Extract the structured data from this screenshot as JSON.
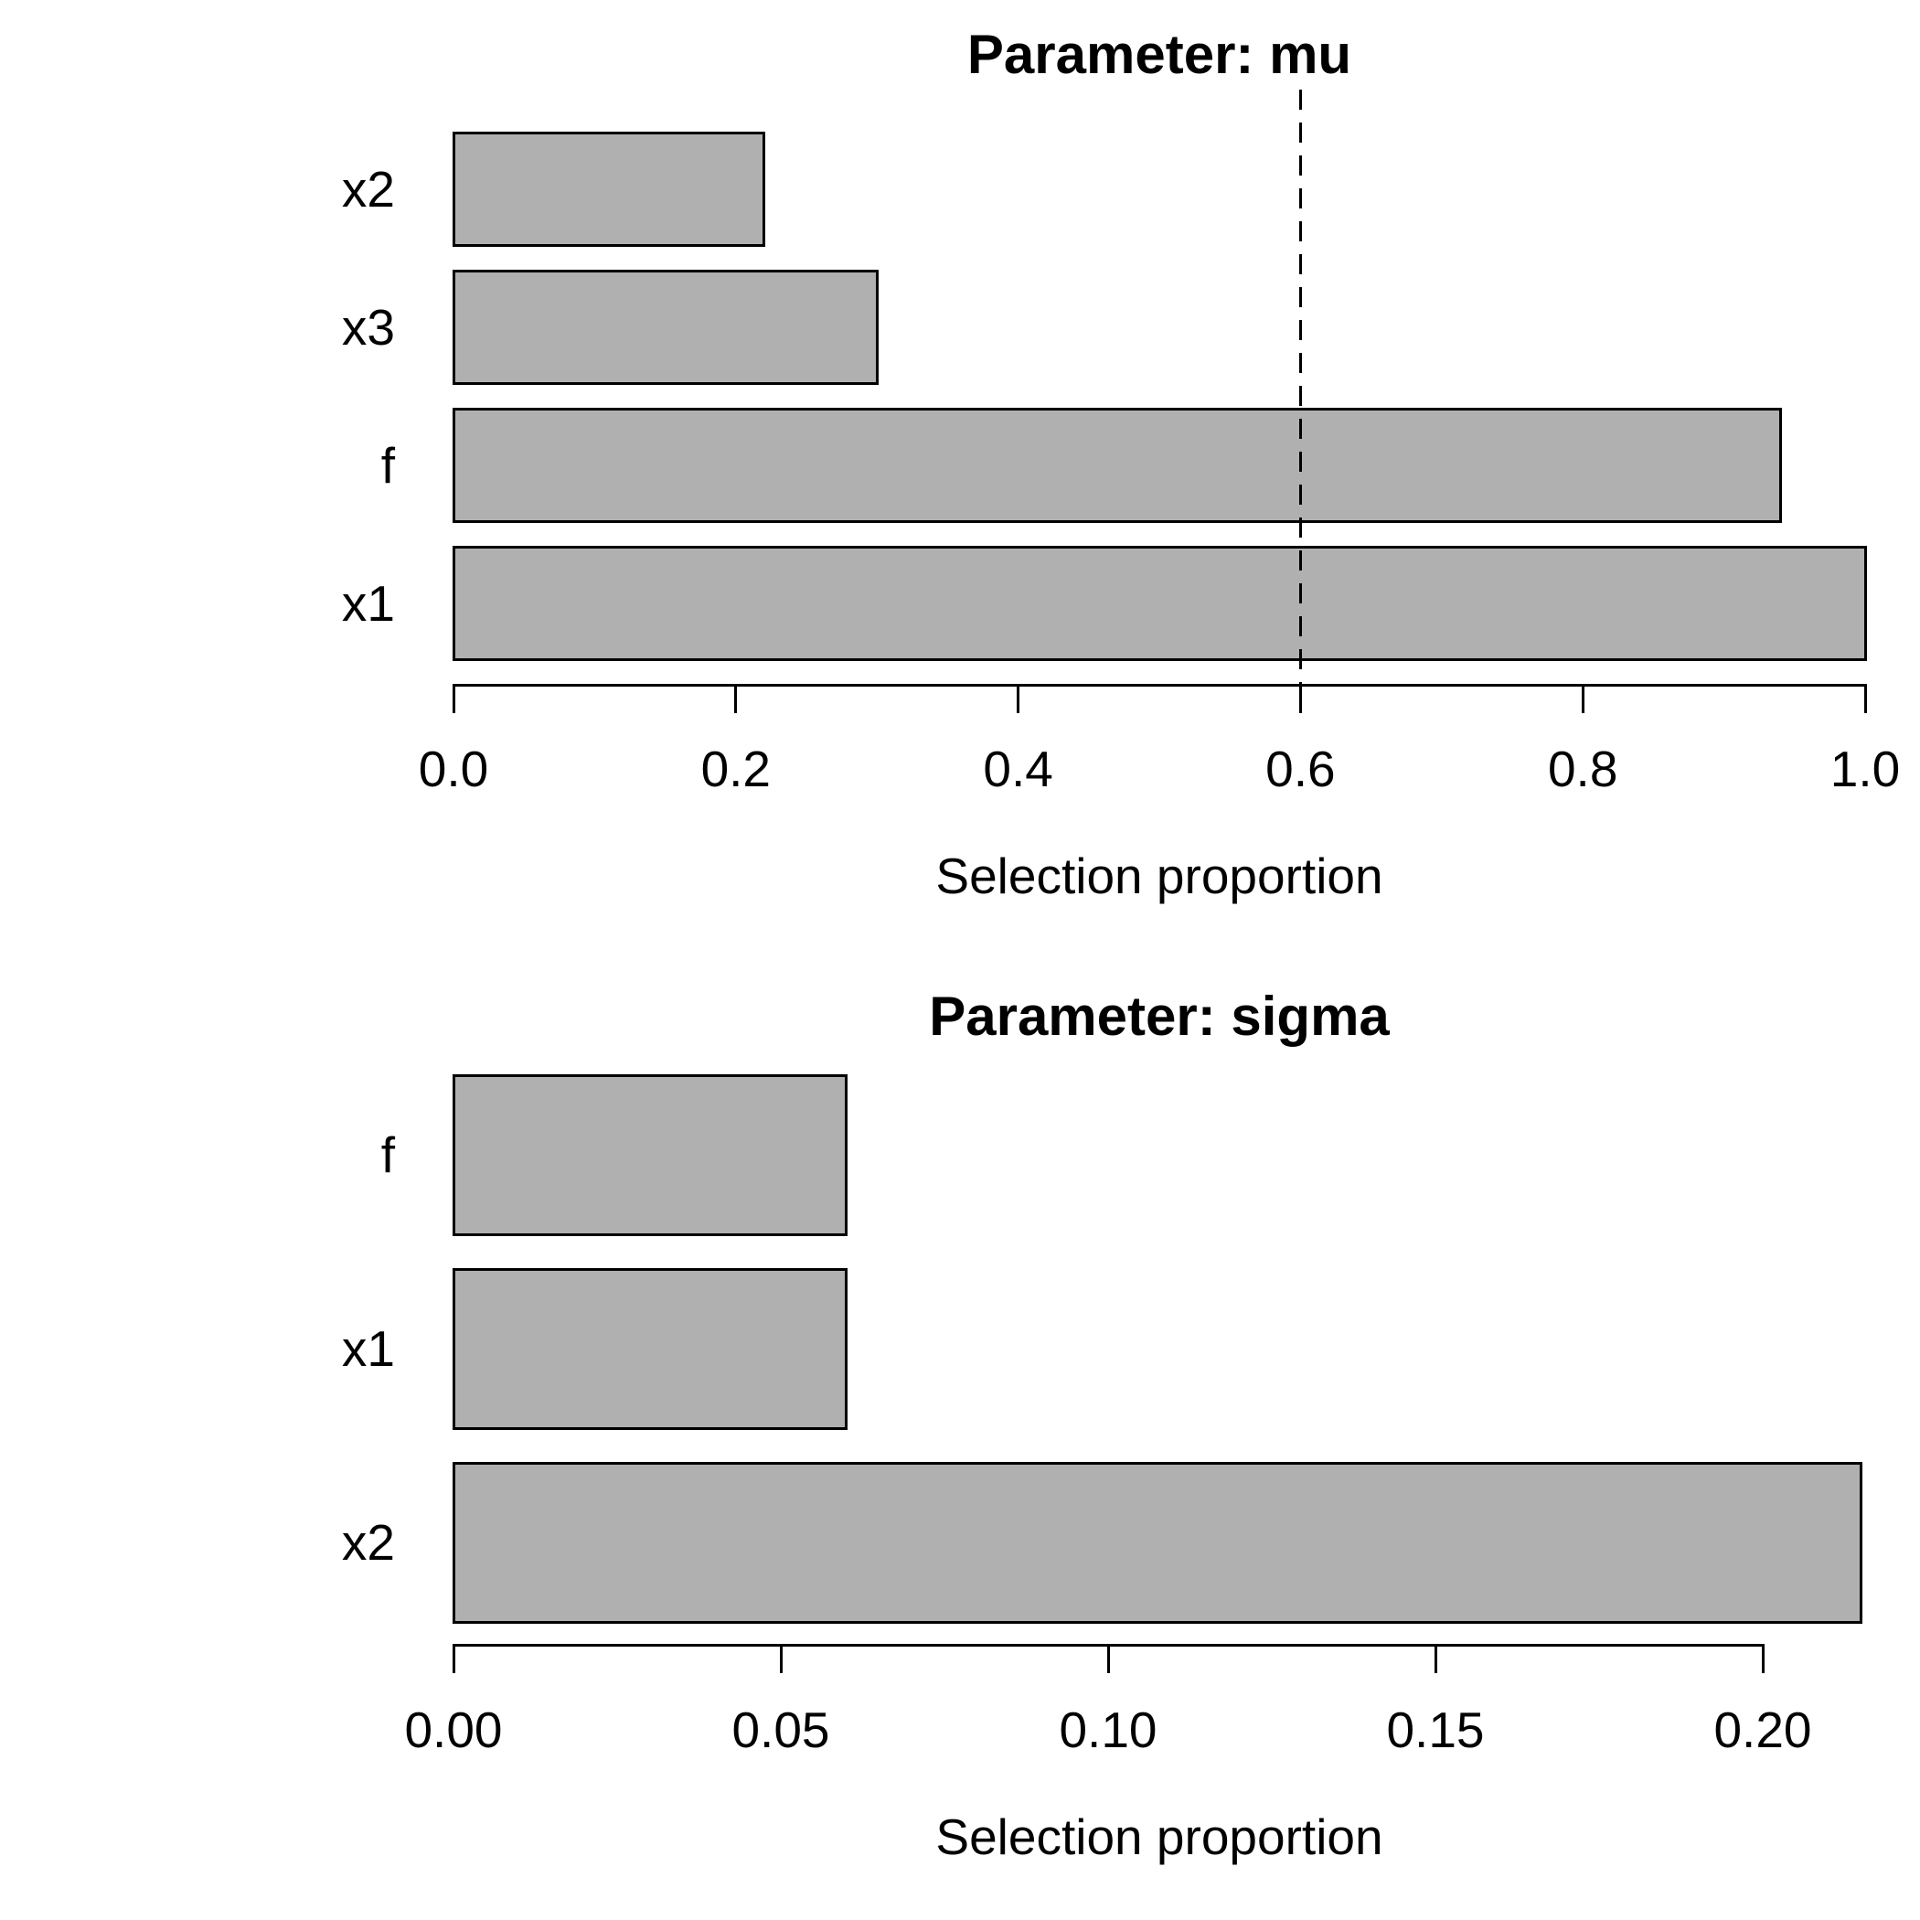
{
  "figure": {
    "background": "#ffffff",
    "bar_fill": "#b0b0b0",
    "bar_border": "#000000",
    "text_color": "#000000"
  },
  "chart_data": [
    {
      "type": "bar",
      "orientation": "horizontal",
      "title": "Parameter: mu",
      "xlabel": "Selection proportion",
      "categories": [
        "x2",
        "x3",
        "f",
        "x1"
      ],
      "values": [
        0.22,
        0.3,
        0.94,
        1.0
      ],
      "xlim": [
        0.0,
        1.0
      ],
      "xticks": [
        0.0,
        0.2,
        0.4,
        0.6,
        0.8,
        1.0
      ],
      "xtick_labels": [
        "0.0",
        "0.2",
        "0.4",
        "0.6",
        "0.8",
        "1.0"
      ],
      "threshold_line": {
        "value": 0.6,
        "style": "dashed",
        "color": "#000000"
      },
      "grid": false,
      "legend": null
    },
    {
      "type": "bar",
      "orientation": "horizontal",
      "title": "Parameter: sigma",
      "xlabel": "Selection proportion",
      "categories": [
        "f",
        "x1",
        "x2"
      ],
      "values": [
        0.06,
        0.06,
        0.215
      ],
      "xlim": [
        0.0,
        0.22
      ],
      "xticks": [
        0.0,
        0.05,
        0.1,
        0.15,
        0.2
      ],
      "xtick_labels": [
        "0.00",
        "0.05",
        "0.10",
        "0.15",
        "0.20"
      ],
      "threshold_line": null,
      "grid": false,
      "legend": null
    }
  ]
}
